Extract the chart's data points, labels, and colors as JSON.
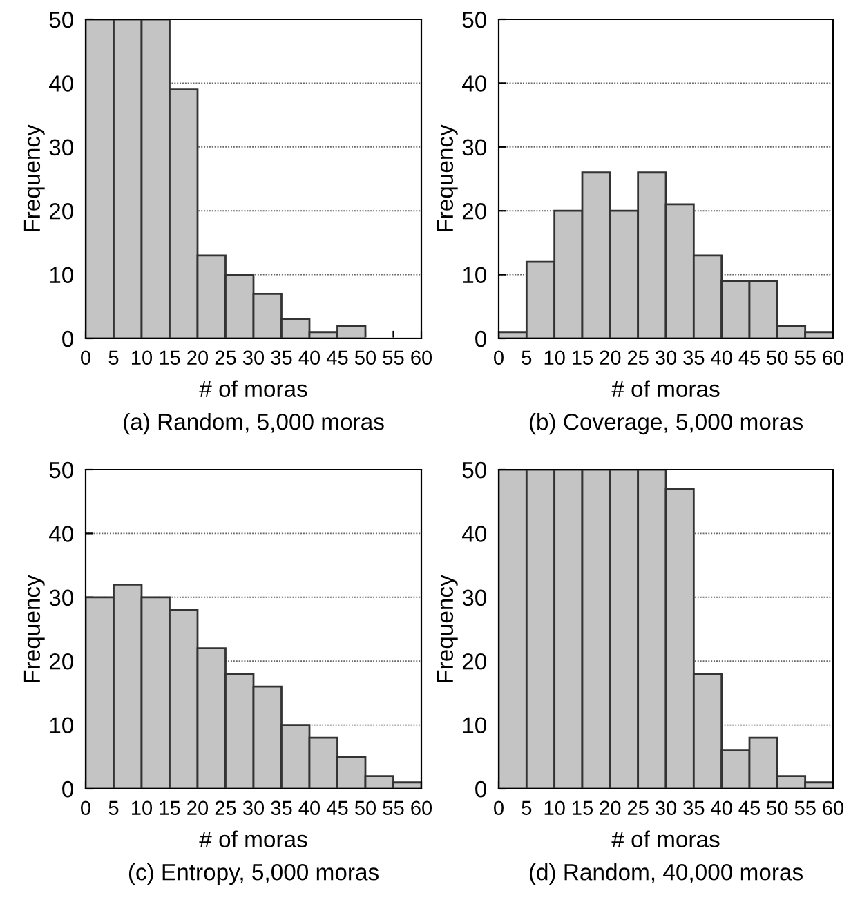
{
  "chart_data": [
    {
      "type": "histogram",
      "title": "(a) Random, 5,000 moras",
      "xlabel": "# of moras",
      "ylabel": "Frequency",
      "bins": [
        0,
        5,
        10,
        15,
        20,
        25,
        30,
        35,
        40,
        45,
        50,
        55,
        60
      ],
      "values": [
        50,
        50,
        50,
        39,
        13,
        10,
        7,
        3,
        1,
        2,
        0,
        0
      ],
      "color": "#c4c4c4",
      "xlim": [
        0,
        60
      ],
      "ylim": [
        0,
        50
      ],
      "xticks": [
        0,
        5,
        10,
        15,
        20,
        25,
        30,
        35,
        40,
        45,
        50,
        55,
        60
      ],
      "yticks": [
        0,
        10,
        20,
        30,
        40,
        50
      ],
      "grid": "y"
    },
    {
      "type": "histogram",
      "title": "(b) Coverage, 5,000 moras",
      "xlabel": "# of moras",
      "ylabel": "Frequency",
      "bins": [
        0,
        5,
        10,
        15,
        20,
        25,
        30,
        35,
        40,
        45,
        50,
        55,
        60
      ],
      "values": [
        1,
        12,
        20,
        26,
        20,
        26,
        21,
        13,
        9,
        9,
        2,
        1
      ],
      "color": "#c4c4c4",
      "xlim": [
        0,
        60
      ],
      "ylim": [
        0,
        50
      ],
      "xticks": [
        0,
        5,
        10,
        15,
        20,
        25,
        30,
        35,
        40,
        45,
        50,
        55,
        60
      ],
      "yticks": [
        0,
        10,
        20,
        30,
        40,
        50
      ],
      "grid": "y"
    },
    {
      "type": "histogram",
      "title": "(c) Entropy, 5,000 moras",
      "xlabel": "# of moras",
      "ylabel": "Frequency",
      "bins": [
        0,
        5,
        10,
        15,
        20,
        25,
        30,
        35,
        40,
        45,
        50,
        55,
        60
      ],
      "values": [
        30,
        32,
        30,
        28,
        22,
        18,
        16,
        10,
        8,
        5,
        2,
        1
      ],
      "color": "#c4c4c4",
      "xlim": [
        0,
        60
      ],
      "ylim": [
        0,
        50
      ],
      "xticks": [
        0,
        5,
        10,
        15,
        20,
        25,
        30,
        35,
        40,
        45,
        50,
        55,
        60
      ],
      "yticks": [
        0,
        10,
        20,
        30,
        40,
        50
      ],
      "grid": "y"
    },
    {
      "type": "histogram",
      "title": "(d) Random, 40,000 moras",
      "xlabel": "# of moras",
      "ylabel": "Frequency",
      "bins": [
        0,
        5,
        10,
        15,
        20,
        25,
        30,
        35,
        40,
        45,
        50,
        55,
        60
      ],
      "values": [
        50,
        50,
        50,
        50,
        50,
        50,
        47,
        18,
        6,
        8,
        2,
        1
      ],
      "color": "#c4c4c4",
      "xlim": [
        0,
        60
      ],
      "ylim": [
        0,
        50
      ],
      "xticks": [
        0,
        5,
        10,
        15,
        20,
        25,
        30,
        35,
        40,
        45,
        50,
        55,
        60
      ],
      "yticks": [
        0,
        10,
        20,
        30,
        40,
        50
      ],
      "grid": "y"
    }
  ]
}
